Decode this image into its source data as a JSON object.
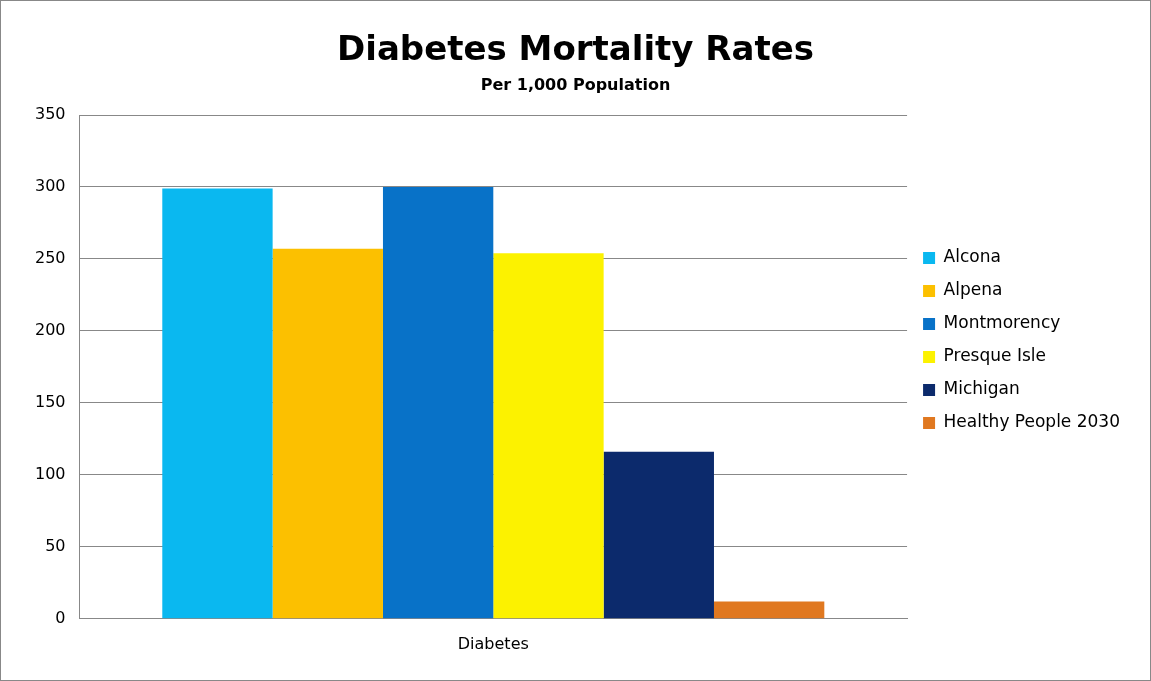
{
  "chart_data": {
    "type": "bar",
    "title": "Diabetes Mortality Rates",
    "subtitle": "Per 1,000 Population",
    "categories": [
      "Diabetes"
    ],
    "series": [
      {
        "name": "Alcona",
        "color": "#0ab8f0",
        "values": [
          299
        ]
      },
      {
        "name": "Alpena",
        "color": "#fcc000",
        "values": [
          257
        ]
      },
      {
        "name": "Montmorency",
        "color": "#0872c8",
        "values": [
          300
        ]
      },
      {
        "name": "Presque Isle",
        "color": "#fcf200",
        "values": [
          254
        ]
      },
      {
        "name": "Michigan",
        "color": "#0c2a6c",
        "values": [
          116
        ]
      },
      {
        "name": "Healthy People 2030",
        "color": "#e07820",
        "values": [
          12
        ]
      }
    ],
    "ylim": [
      0,
      350
    ],
    "yticks": [
      0,
      50,
      100,
      150,
      200,
      250,
      300,
      350
    ],
    "grid": "y",
    "legend": "right"
  }
}
